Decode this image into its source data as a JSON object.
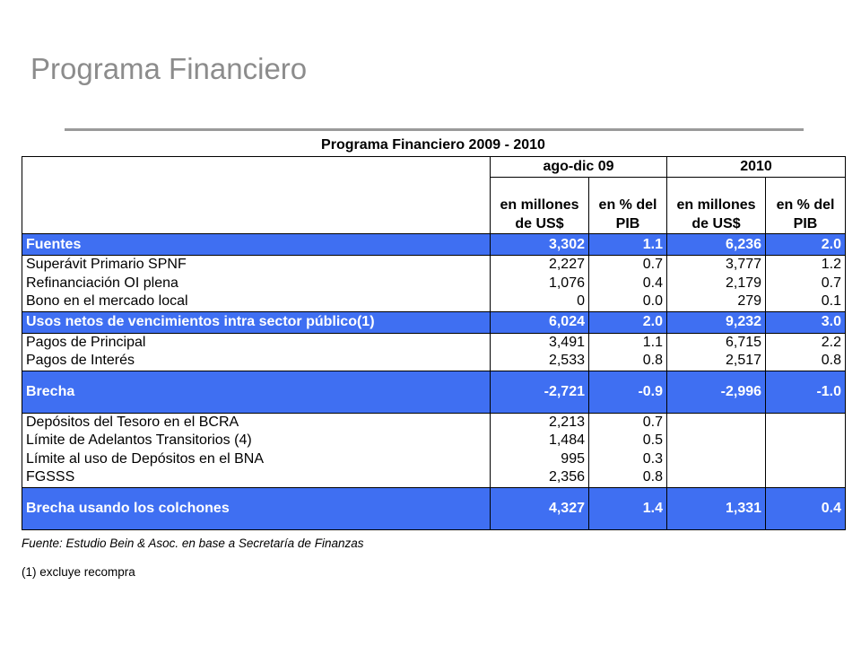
{
  "slide": {
    "title": "Programa Financiero"
  },
  "table": {
    "title": "Programa Financiero 2009 - 2010",
    "periods": [
      "ago-dic 09",
      "2010"
    ],
    "unit_headers": [
      [
        "en millones",
        "de US$"
      ],
      [
        "en % del",
        "PIB"
      ],
      [
        "en millones",
        "de US$"
      ],
      [
        "en % del",
        "PIB"
      ]
    ],
    "sections": [
      {
        "header": {
          "label": "Fuentes",
          "values": [
            "3,302",
            "1.1",
            "6,236",
            "2.0"
          ]
        },
        "rows": [
          {
            "label": "Superávit Primario SPNF",
            "values": [
              "2,227",
              "0.7",
              "3,777",
              "1.2"
            ]
          },
          {
            "label": "Refinanciación OI  plena",
            "values": [
              "1,076",
              "0.4",
              "2,179",
              "0.7"
            ]
          },
          {
            "label": "Bono en el mercado local",
            "values": [
              "0",
              "0.0",
              "279",
              "0.1"
            ]
          }
        ]
      },
      {
        "header": {
          "label": "Usos netos de vencimientos intra sector público(1)",
          "values": [
            "6,024",
            "2.0",
            "9,232",
            "3.0"
          ]
        },
        "rows": [
          {
            "label": "Pagos de Principal",
            "values": [
              "3,491",
              "1.1",
              "6,715",
              "2.2"
            ]
          },
          {
            "label": "Pagos de Interés",
            "values": [
              "2,533",
              "0.8",
              "2,517",
              "0.8"
            ]
          }
        ]
      },
      {
        "header": {
          "label": "Brecha",
          "values": [
            "-2,721",
            "-0.9",
            "-2,996",
            "-1.0"
          ]
        },
        "rows": [
          {
            "label": "Depósitos del Tesoro en el BCRA",
            "values": [
              "2,213",
              "0.7",
              "",
              ""
            ]
          },
          {
            "label": "Límite de Adelantos Transitorios (4)",
            "values": [
              "1,484",
              "0.5",
              "",
              ""
            ]
          },
          {
            "label": "Límite al uso de Depósitos en el BNA",
            "values": [
              "995",
              "0.3",
              "",
              ""
            ]
          },
          {
            "label": "FGSSS",
            "values": [
              "2,356",
              "0.8",
              "",
              ""
            ]
          }
        ]
      },
      {
        "header": {
          "label": "Brecha usando los colchones",
          "values": [
            "4,327",
            "1.4",
            "1,331",
            "0.4"
          ]
        },
        "rows": []
      }
    ]
  },
  "notes": {
    "source": "Fuente: Estudio Bein & Asoc. en base a Secretaría de Finanzas",
    "footnote": "(1) excluye recompra"
  },
  "colors": {
    "highlight": "#3f6ff2",
    "title": "#8c8c8c",
    "divider": "#9a9a9a"
  }
}
